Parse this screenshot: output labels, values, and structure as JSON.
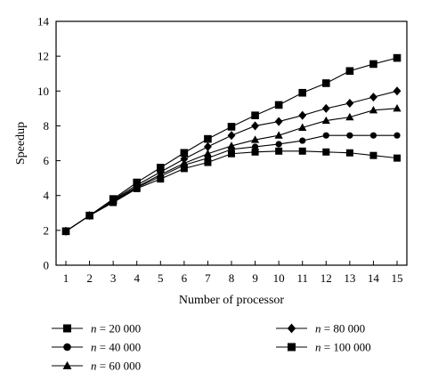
{
  "chart_data": {
    "type": "line",
    "xlabel": "Number of processor",
    "ylabel": "Speedup",
    "xlim": [
      1,
      15
    ],
    "ylim": [
      0,
      14
    ],
    "x_ticks": [
      1,
      2,
      3,
      4,
      5,
      6,
      7,
      8,
      9,
      10,
      11,
      12,
      13,
      14,
      15
    ],
    "y_ticks": [
      0,
      2,
      4,
      6,
      8,
      10,
      12,
      14
    ],
    "grid": false,
    "x": [
      1,
      2,
      3,
      4,
      5,
      6,
      7,
      8,
      9,
      10,
      11,
      12,
      13,
      14,
      15
    ],
    "series": [
      {
        "name": "20 000",
        "marker": "square",
        "values": [
          1.95,
          2.85,
          3.6,
          4.4,
          4.95,
          5.55,
          5.9,
          6.4,
          6.5,
          6.55,
          6.55,
          6.5,
          6.45,
          6.3,
          6.15
        ]
      },
      {
        "name": "40 000",
        "marker": "circle",
        "values": [
          1.95,
          2.85,
          3.65,
          4.45,
          5.1,
          5.75,
          6.15,
          6.65,
          6.8,
          6.95,
          7.15,
          7.45,
          7.45,
          7.45,
          7.45
        ]
      },
      {
        "name": "60 000",
        "marker": "triangle",
        "values": [
          1.95,
          2.85,
          3.7,
          4.5,
          5.2,
          5.85,
          6.4,
          6.85,
          7.2,
          7.45,
          7.9,
          8.3,
          8.5,
          8.9,
          9.0
        ]
      },
      {
        "name": "80 000",
        "marker": "diamond",
        "values": [
          1.95,
          2.85,
          3.75,
          4.6,
          5.35,
          6.1,
          6.8,
          7.45,
          8.0,
          8.25,
          8.6,
          9.0,
          9.3,
          9.65,
          10.0
        ]
      },
      {
        "name": "100 000",
        "marker": "square",
        "values": [
          1.95,
          2.85,
          3.8,
          4.75,
          5.6,
          6.45,
          7.25,
          7.95,
          8.6,
          9.2,
          9.9,
          10.45,
          11.15,
          11.55,
          11.9
        ]
      }
    ],
    "legend": {
      "placement": "bottom",
      "prefix": "n",
      "items": [
        "20 000",
        "40 000",
        "60 000",
        "80 000",
        "100 000"
      ]
    }
  }
}
